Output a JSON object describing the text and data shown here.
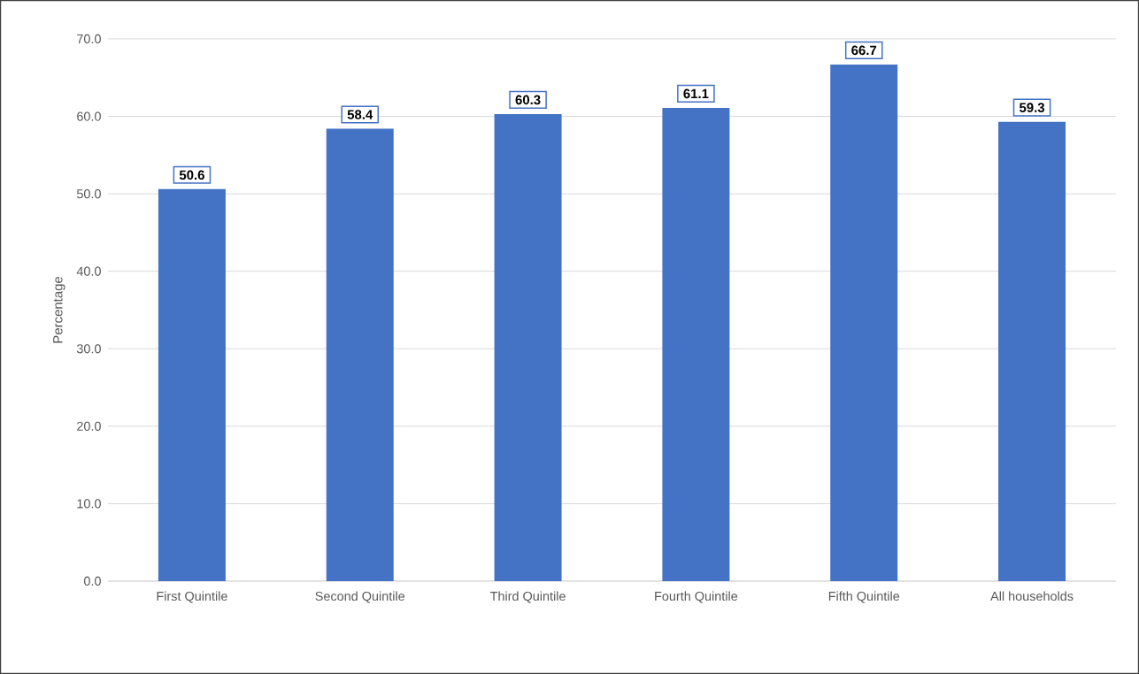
{
  "chart_data": {
    "type": "bar",
    "ylabel": "Percentage",
    "categories": [
      "First Quintile",
      "Second Quintile",
      "Third Quintile",
      "Fourth Quintile",
      "Fifth Quintile",
      "All households"
    ],
    "values": [
      50.6,
      58.4,
      60.3,
      61.1,
      66.7,
      59.3
    ],
    "color": "#4472c4",
    "ylim": [
      0,
      70
    ],
    "yticks": [
      {
        "value": 0,
        "label": "0.0"
      },
      {
        "value": 10,
        "label": "10.0"
      },
      {
        "value": 20,
        "label": "20.0"
      },
      {
        "value": 30,
        "label": "30.0"
      },
      {
        "value": 40,
        "label": "40.0"
      },
      {
        "value": 50,
        "label": "50.0"
      },
      {
        "value": 60,
        "label": "60.0"
      },
      {
        "value": 70,
        "label": "70.0"
      }
    ],
    "grid": "y",
    "data_labels": true
  }
}
